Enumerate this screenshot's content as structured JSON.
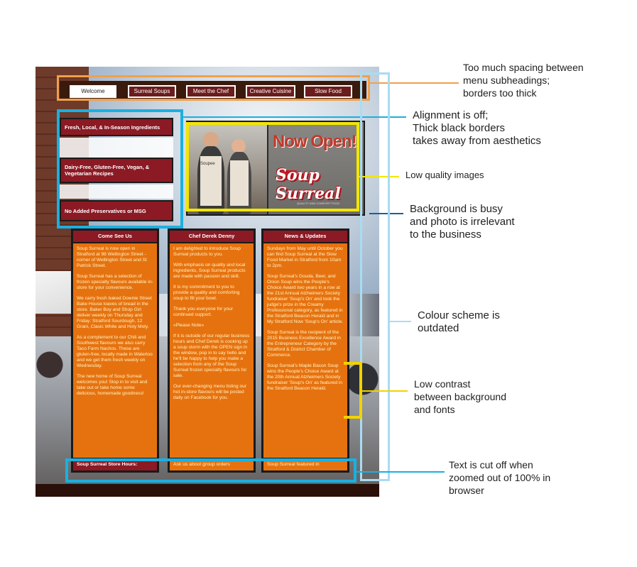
{
  "nav": {
    "items": [
      "Welcome",
      "Surreal Soups",
      "Meet the Chef",
      "Creative Cuisine",
      "Slow Food"
    ],
    "active_index": 0
  },
  "features": [
    "Fresh, Local, & In-Season Ingredients",
    "Dairy-Free, Gluten-Free, Vegan, & Vegetarian Recipes",
    "No Added Preservatives or MSG"
  ],
  "hero": {
    "sign_text": "Now Open!",
    "logo_text": "Soup Surreal",
    "logo_tag": "QUALITY AND COMFORT FOOD",
    "apron_text": "Soupee"
  },
  "columns": [
    {
      "heading": "Come See Us",
      "paragraphs": [
        "Soup Surreal is now open in Stratford at 98 Wellington Street - corner of Wellington Street and St Patrick Street.",
        "Soup Surreal has a selection of frozen specialty flavours available in-store for your convenience.",
        "We carry fresh baked Downie Street Bake House loaves of bread in the store. Baker Boy and Shop Girl deliver weekly on Thursday and Friday: Stratford Sourdough, 12 Grain, Clasic White and Holy Moly.",
        "As a complement to our Chili and Southwest flavours we also carry Taco Farm Nachos. These are gluten-free, locally made in Waterloo and we get them fresh weekly on Wednesday.",
        "The new home of Soup Surreal welcomes you! Stop in to visit and take out or take home some delicious, homemade goodness!"
      ],
      "footer": "Soup Surreal Store Hours:"
    },
    {
      "heading": "Chef Derek Denny",
      "paragraphs": [
        "I am delighted to introduce Soup Surreal products to you.",
        "With emphasis on quality and local ingredients, Soup Surreal products are made with passion and skill.",
        "It is my commitment to you to provide a quality and comforting soup to fill your bowl.",
        "Thank you everyone for your continued support.",
        "",
        "«Please Note»",
        "If it is outside of our regular business hours and Chef Derek is cooking up a soup storm with the OPEN sign in the window, pop in to say hello and he'll be happy to help you make a selection from any of the Soup Surreal frozen specialty flavours for sale.",
        "Our ever-changing menu listing our hot in-store flavours will be posted daily on Facebook for you."
      ],
      "footer": "Ask us about group orders"
    },
    {
      "heading": "News & Updates",
      "paragraphs": [
        "Sundays from May until October you can find Soup Surreal at the Slow Food Market in Stratford from 10am to 2pm.",
        "Soup Surreal's Gouda, Beer, and Onion Soup wins the People's Choice Award two years in a row at the 21st Annual Alzheimers Society fundraiser 'Soup's On' and took the judge's prize in the Creamy Professional category, as featured in the Stratford Beacon Herald and in My Stratford Now 'Soup's On' article.",
        "Soup Surreal is the recipient of the 2015 Business Excellence Award in the Entrepreneur Category by the Stratford & District Chamber of Commerce.",
        "Soup Surreal's Maple Bacon Soup wins the People's Choice Award at the 20th Annual Alzheimers Society fundraiser 'Soup's On' as featured in the Stratford Beacon Herald."
      ],
      "footer": "Soup Surreal featured in"
    }
  ],
  "annotations": [
    {
      "text": [
        "Too much spacing between",
        "menu subheadings;",
        "borders too thick"
      ],
      "color": "#f0a04b"
    },
    {
      "text": [
        "Alignment is off;",
        "Thick black borders",
        "takes away from aesthetics"
      ],
      "color": "#1ab0e0"
    },
    {
      "text": [
        "Low quality images"
      ],
      "color": "#f2e600"
    },
    {
      "text": [
        "Background is busy",
        "and photo is irrelevant",
        "to the business"
      ],
      "color": "#1a5f9e"
    },
    {
      "text": [
        "Colour scheme is",
        "outdated"
      ],
      "color": "#a8dcf2"
    },
    {
      "text": [
        "Low contrast",
        "between background",
        "and fonts"
      ],
      "color": "#f2d200"
    },
    {
      "text": [
        "Text is cut off when",
        "zoomed out of 100% in",
        "browser"
      ],
      "color": "#1ab0e0"
    }
  ]
}
